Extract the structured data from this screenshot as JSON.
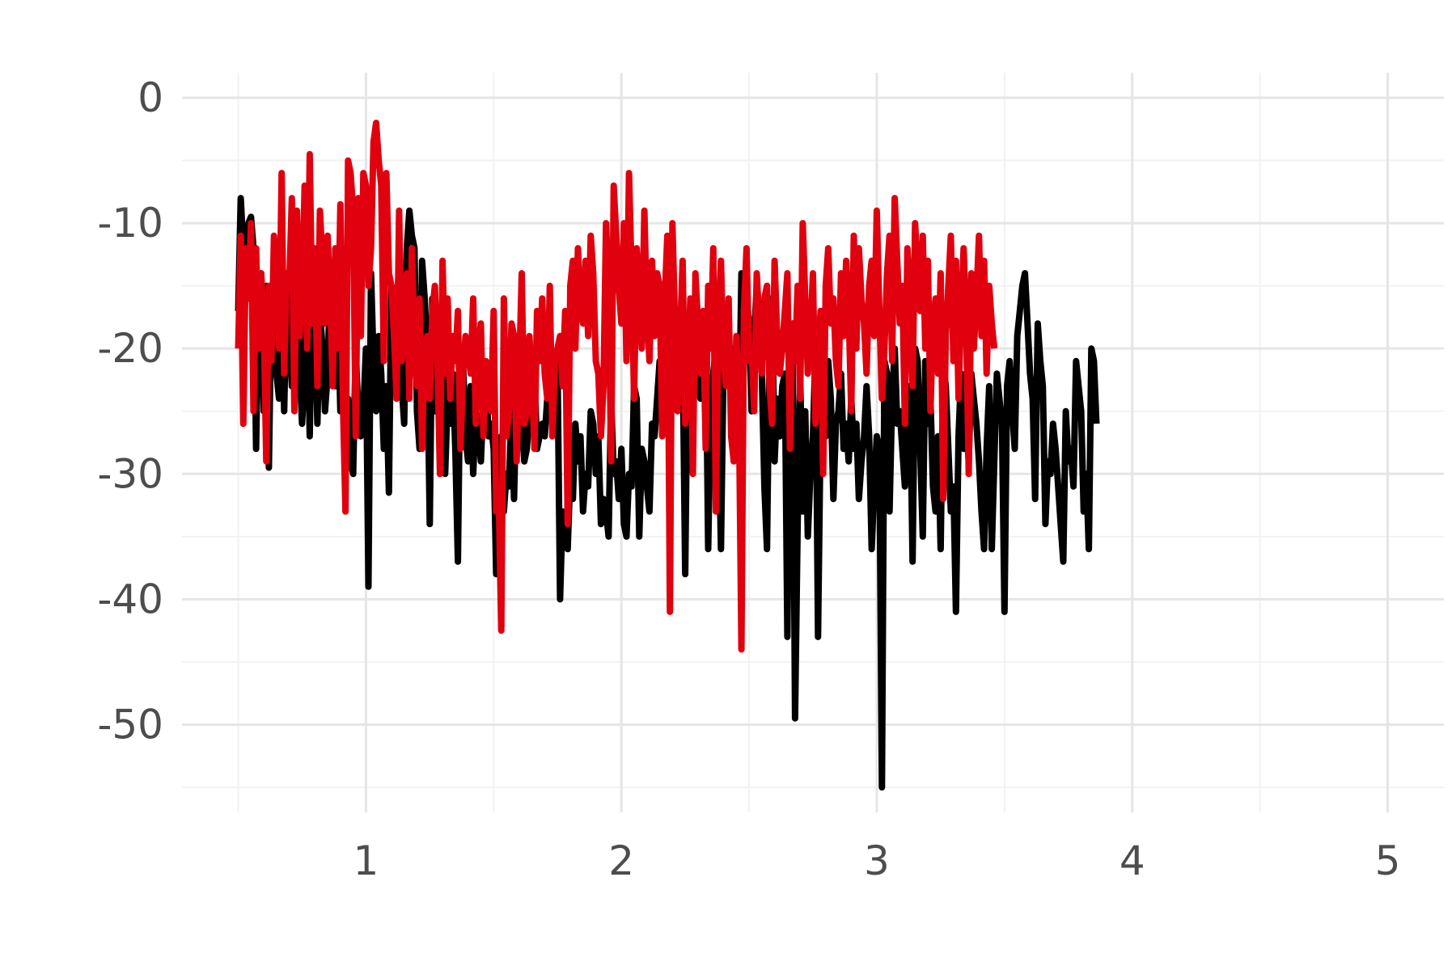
{
  "chart_data": {
    "type": "line",
    "title": "",
    "xlabel": "",
    "ylabel": "",
    "xlim": [
      0.28,
      5.22
    ],
    "ylim": [
      -57,
      2
    ],
    "x_major_ticks": [
      1,
      2,
      3,
      4,
      5
    ],
    "x_tick_labels": [
      "1",
      "2",
      "3",
      "4",
      "5"
    ],
    "x_minor_ticks": [
      0.5,
      1.5,
      2.5,
      3.5,
      4.5
    ],
    "y_major_ticks": [
      0,
      -10,
      -20,
      -30,
      -40,
      -50
    ],
    "y_tick_labels": [
      "0",
      "-10",
      "-20",
      "-30",
      "-40",
      "-50"
    ],
    "y_minor_ticks": [
      -5,
      -15,
      -25,
      -35,
      -45,
      -55
    ],
    "grid": true,
    "legend": "none",
    "colors": {
      "black_series": "#000000",
      "red_series": "#e0000e",
      "grid_major": "#e5e5e5",
      "grid_minor": "#f2f2f2",
      "tick_text": "#4d4d4d"
    },
    "x_start": 0.5,
    "x_step": 0.01,
    "series": [
      {
        "color": "#000000",
        "values": [
          -17,
          -8,
          -12,
          -14,
          -10,
          -9.5,
          -12,
          -28,
          -16,
          -14,
          -25,
          -15,
          -29.5,
          -16,
          -20,
          -22,
          -24,
          -14,
          -25,
          -15,
          -18,
          -23,
          -16,
          -13,
          -21,
          -26,
          -22,
          -15,
          -27,
          -14,
          -18,
          -26,
          -17,
          -20,
          -25,
          -22,
          -14,
          -22,
          -23,
          -17,
          -25,
          -20,
          -26,
          -24,
          -29,
          -30,
          -20,
          -25,
          -27,
          -25,
          -20,
          -39,
          -14,
          -21,
          -25,
          -19,
          -22,
          -28,
          -23,
          -31.5,
          -15,
          -22,
          -20,
          -12,
          -23,
          -26,
          -12,
          -9,
          -11,
          -12,
          -25,
          -28,
          -13,
          -16,
          -20,
          -34,
          -16,
          -25,
          -22,
          -27,
          -17,
          -30,
          -24,
          -26,
          -22,
          -28,
          -37,
          -20,
          -21,
          -27,
          -29,
          -23,
          -30,
          -25,
          -26,
          -29,
          -24,
          -22,
          -27,
          -26,
          -28,
          -38,
          -37,
          -27,
          -33,
          -30,
          -31,
          -25,
          -32,
          -23,
          -24,
          -26,
          -29,
          -28,
          -25,
          -23,
          -22,
          -28,
          -27,
          -26,
          -27,
          -24,
          -21,
          -23,
          -23,
          -21,
          -40,
          -33,
          -35,
          -36,
          -30,
          -32,
          -26,
          -29,
          -27,
          -33,
          -30,
          -31,
          -25,
          -26,
          -30,
          -27,
          -34,
          -32,
          -33,
          -35,
          -24,
          -30,
          -29,
          -32,
          -28,
          -34,
          -35,
          -30,
          -31,
          -23,
          -24,
          -35,
          -28,
          -29,
          -31,
          -33,
          -26,
          -27,
          -24,
          -21,
          -22,
          -23,
          -20,
          -19,
          -17,
          -18,
          -21,
          -22,
          -20,
          -38,
          -19,
          -22,
          -17,
          -21,
          -23,
          -24,
          -20,
          -18,
          -36,
          -24,
          -22,
          -20,
          -25,
          -36,
          -21,
          -19,
          -18,
          -24,
          -20,
          -26,
          -27,
          -14,
          -15,
          -16,
          -18,
          -25,
          -19,
          -15,
          -17,
          -22,
          -31,
          -36,
          -20,
          -16,
          -29,
          -24,
          -27,
          -23,
          -22,
          -43,
          -20,
          -18,
          -49.5,
          -34,
          -22,
          -33,
          -25,
          -35,
          -30,
          -27,
          -20,
          -43,
          -26,
          -23,
          -27,
          -21,
          -24,
          -32,
          -26,
          -25,
          -22,
          -28,
          -26,
          -29,
          -24,
          -28,
          -26,
          -32,
          -29,
          -27,
          -23,
          -27,
          -36,
          -31,
          -27,
          -28,
          -55,
          -21,
          -22,
          -33,
          -24,
          -20,
          -26,
          -25,
          -28,
          -31,
          -24,
          -23,
          -37,
          -20,
          -21,
          -28,
          -35,
          -21,
          -26,
          -24,
          -31,
          -33,
          -27,
          -36,
          -21,
          -23,
          -28,
          -33,
          -31,
          -41,
          -27,
          -22,
          -28,
          -26,
          -29,
          -22,
          -24,
          -26,
          -29,
          -33,
          -36,
          -28,
          -23,
          -36,
          -29,
          -22,
          -24,
          -26,
          -41,
          -23,
          -21,
          -25,
          -28,
          -19,
          -17,
          -15,
          -14,
          -18,
          -22,
          -24,
          -32,
          -18,
          -21,
          -23,
          -34,
          -29,
          -30,
          -26,
          -28,
          -31,
          -34,
          -37,
          -25,
          -29,
          -28,
          -31,
          -21,
          -23,
          -25,
          -33,
          -30,
          -36,
          -20,
          -21,
          -26
        ]
      },
      {
        "color": "#e0000e",
        "values": [
          -20,
          -11,
          -26,
          -12,
          -16,
          -10,
          -25,
          -12,
          -20,
          -14,
          -18,
          -29,
          -15,
          -21,
          -11,
          -14,
          -20,
          -6,
          -22,
          -14,
          -15,
          -8,
          -25,
          -9,
          -19,
          -16,
          -7,
          -20,
          -4.5,
          -18,
          -12,
          -23,
          -9,
          -13,
          -18,
          -11,
          -16,
          -23,
          -12,
          -20,
          -8.5,
          -24,
          -33,
          -5,
          -6,
          -9,
          -27,
          -8,
          -19,
          -6,
          -7,
          -15,
          -12,
          -3.5,
          -2,
          -5,
          -7,
          -21,
          -6,
          -14,
          -15,
          -19,
          -24,
          -9,
          -21,
          -17,
          -14,
          -24,
          -12,
          -20,
          -23,
          -16,
          -28,
          -20,
          -19,
          -24,
          -17,
          -15,
          -21,
          -30,
          -13,
          -22,
          -16,
          -24,
          -19,
          -21,
          -17,
          -28,
          -22,
          -19,
          -20,
          -22,
          -16,
          -26,
          -20,
          -18,
          -27,
          -21,
          -24,
          -25,
          -17,
          -33,
          -32,
          -42.5,
          -16,
          -27,
          -25,
          -18,
          -19,
          -29,
          -22,
          -14,
          -26,
          -25,
          -19,
          -23,
          -28,
          -17,
          -21,
          -16,
          -22,
          -24,
          -15,
          -27,
          -21,
          -20,
          -19,
          -23,
          -17,
          -34,
          -15,
          -13,
          -20,
          -12,
          -17,
          -18,
          -13,
          -19,
          -11,
          -14,
          -21,
          -22,
          -27,
          -23,
          -10,
          -15,
          -29,
          -7,
          -11,
          -15,
          -18,
          -10,
          -21,
          -6,
          -14,
          -24,
          -12,
          -16,
          -20,
          -9,
          -17,
          -21,
          -13,
          -19,
          -14,
          -15,
          -27,
          -16,
          -11,
          -41,
          -10,
          -18,
          -25,
          -19,
          -13,
          -26,
          -23,
          -16,
          -30,
          -14,
          -18,
          -22,
          -17,
          -28,
          -15,
          -20,
          -12,
          -33,
          -18,
          -13,
          -21,
          -23,
          -16,
          -27,
          -29,
          -19,
          -24,
          -44,
          -17,
          -12,
          -21,
          -20,
          -25,
          -14,
          -18,
          -22,
          -16,
          -15,
          -23,
          -26,
          -13,
          -19,
          -22,
          -20,
          -17,
          -14,
          -28,
          -18,
          -21,
          -15,
          -24,
          -10,
          -16,
          -22,
          -19,
          -14,
          -26,
          -20,
          -17,
          -30,
          -15,
          -12,
          -18,
          -16,
          -21,
          -23,
          -14,
          -19,
          -13,
          -17,
          -25,
          -11,
          -20,
          -12,
          -16,
          -18,
          -22,
          -15,
          -13,
          -19,
          -9,
          -17,
          -24,
          -20,
          -14,
          -11,
          -21,
          -8,
          -13,
          -18,
          -15,
          -26,
          -12,
          -16,
          -23,
          -10,
          -14,
          -17,
          -11,
          -20,
          -13,
          -25,
          -18,
          -16,
          -22,
          -14,
          -32,
          -19,
          -15,
          -11,
          -21,
          -13,
          -24,
          -17,
          -12,
          -18,
          -30,
          -14,
          -20,
          -16,
          -11,
          -19,
          -13,
          -22,
          -15,
          -18,
          -20
        ]
      }
    ]
  }
}
